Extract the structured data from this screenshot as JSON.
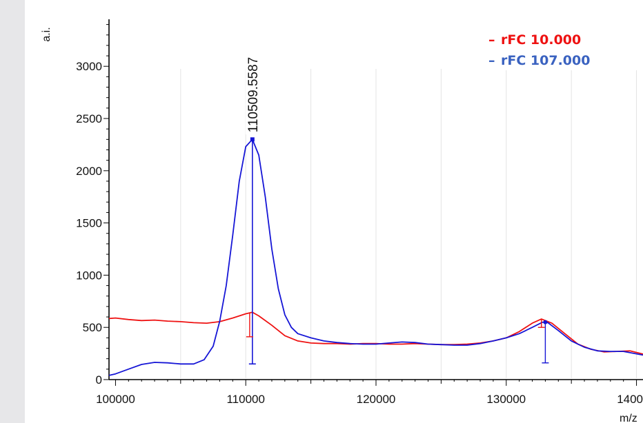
{
  "chart_data": {
    "type": "line",
    "ylabel": "a.i.",
    "xlabel": "m/z",
    "xlim": [
      99500,
      140500
    ],
    "ylim": [
      0,
      3450
    ],
    "x_ticks": [
      100000,
      110000,
      120000,
      130000,
      140000
    ],
    "y_ticks": [
      0,
      500,
      1000,
      1500,
      2000,
      2500,
      3000
    ],
    "grid": "vertical lines, light gray",
    "legend_position": "top-right",
    "peak_annotation": {
      "x": 110509.5587,
      "label": "110509.5587"
    },
    "series": [
      {
        "name": "rFC 10.000",
        "color": "#ee1111",
        "points": [
          [
            99500,
            585
          ],
          [
            100000,
            590
          ],
          [
            101000,
            575
          ],
          [
            102000,
            565
          ],
          [
            103000,
            570
          ],
          [
            104000,
            560
          ],
          [
            105000,
            555
          ],
          [
            106000,
            545
          ],
          [
            107000,
            540
          ],
          [
            108000,
            555
          ],
          [
            109000,
            590
          ],
          [
            110000,
            630
          ],
          [
            110500,
            645
          ],
          [
            111000,
            610
          ],
          [
            112000,
            520
          ],
          [
            113000,
            420
          ],
          [
            114000,
            370
          ],
          [
            115000,
            350
          ],
          [
            116000,
            345
          ],
          [
            117000,
            345
          ],
          [
            118000,
            340
          ],
          [
            119000,
            345
          ],
          [
            120000,
            345
          ],
          [
            121000,
            340
          ],
          [
            122000,
            340
          ],
          [
            123000,
            345
          ],
          [
            124000,
            340
          ],
          [
            125000,
            335
          ],
          [
            126000,
            335
          ],
          [
            127000,
            340
          ],
          [
            128000,
            350
          ],
          [
            129000,
            370
          ],
          [
            130000,
            400
          ],
          [
            131000,
            460
          ],
          [
            132000,
            540
          ],
          [
            132700,
            580
          ],
          [
            133500,
            540
          ],
          [
            134500,
            440
          ],
          [
            135500,
            340
          ],
          [
            136500,
            290
          ],
          [
            137500,
            265
          ],
          [
            138500,
            270
          ],
          [
            139500,
            275
          ],
          [
            140500,
            245
          ]
        ]
      },
      {
        "name": "rFC 107.000",
        "color": "#1515d6",
        "points": [
          [
            99500,
            40
          ],
          [
            100000,
            55
          ],
          [
            101000,
            100
          ],
          [
            102000,
            145
          ],
          [
            103000,
            165
          ],
          [
            104000,
            160
          ],
          [
            105000,
            150
          ],
          [
            106000,
            150
          ],
          [
            106800,
            190
          ],
          [
            107500,
            320
          ],
          [
            108000,
            560
          ],
          [
            108500,
            900
          ],
          [
            109000,
            1380
          ],
          [
            109500,
            1900
          ],
          [
            110000,
            2230
          ],
          [
            110509.5587,
            2300
          ],
          [
            111000,
            2150
          ],
          [
            111500,
            1750
          ],
          [
            112000,
            1250
          ],
          [
            112500,
            870
          ],
          [
            113000,
            620
          ],
          [
            113500,
            500
          ],
          [
            114000,
            440
          ],
          [
            115000,
            400
          ],
          [
            116000,
            370
          ],
          [
            117000,
            355
          ],
          [
            118000,
            345
          ],
          [
            119000,
            340
          ],
          [
            120000,
            340
          ],
          [
            121000,
            350
          ],
          [
            122000,
            360
          ],
          [
            123000,
            355
          ],
          [
            124000,
            340
          ],
          [
            125000,
            335
          ],
          [
            126000,
            330
          ],
          [
            127000,
            330
          ],
          [
            128000,
            345
          ],
          [
            129000,
            370
          ],
          [
            130000,
            400
          ],
          [
            131000,
            440
          ],
          [
            132000,
            500
          ],
          [
            132800,
            550
          ],
          [
            133200,
            545
          ],
          [
            134000,
            470
          ],
          [
            135000,
            370
          ],
          [
            136000,
            310
          ],
          [
            137000,
            275
          ],
          [
            138000,
            270
          ],
          [
            139000,
            270
          ],
          [
            140500,
            235
          ]
        ]
      }
    ]
  }
}
